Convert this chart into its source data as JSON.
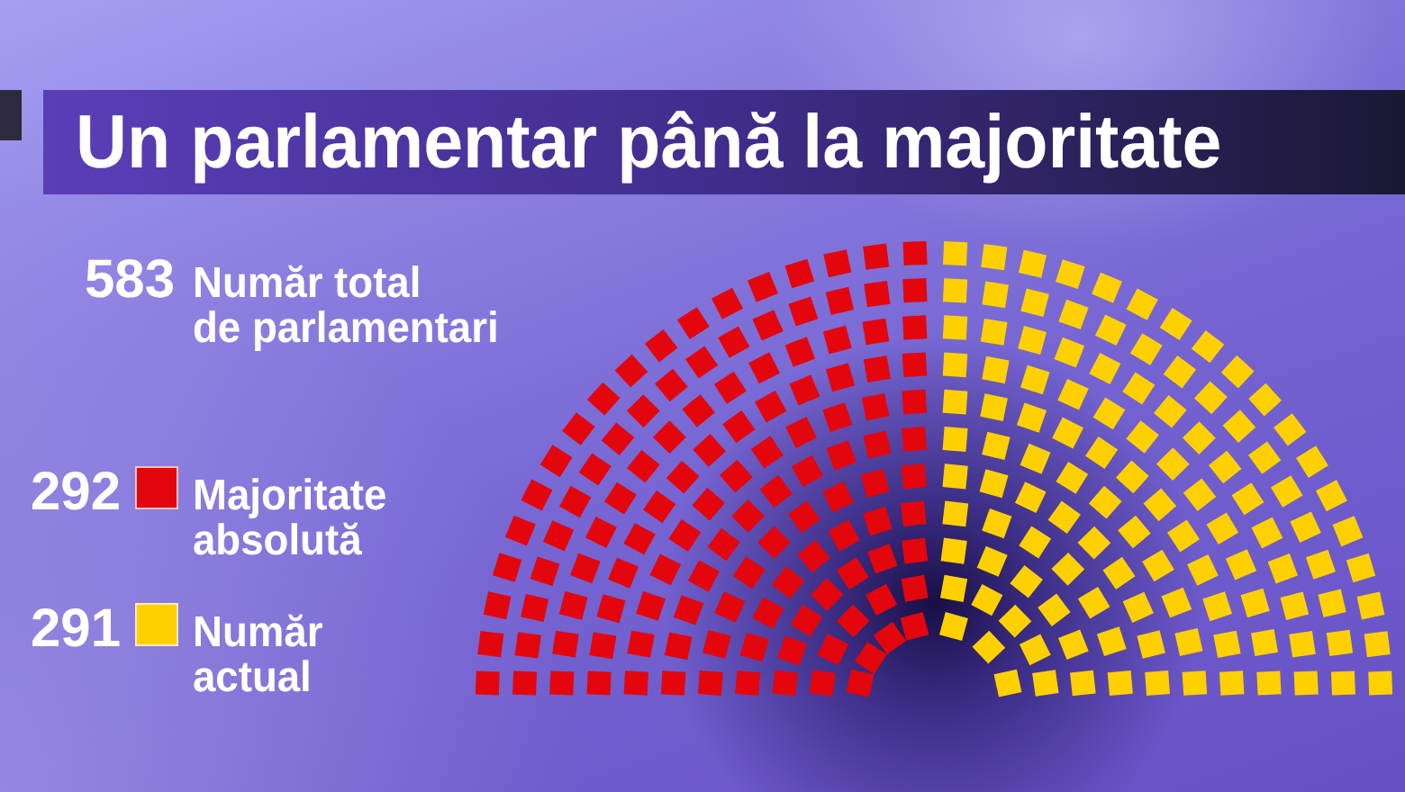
{
  "chart_data": {
    "type": "donut",
    "title": "Un parlamentar până la majoritate",
    "categories": [
      "Majoritate absolută",
      "Număr actual"
    ],
    "values": [
      292,
      291
    ],
    "colors": [
      "#e3060d",
      "#ffd000"
    ],
    "value_labels": [
      "292",
      "291"
    ],
    "legend": "left",
    "annotations": [
      "583 Număr total de parlamentari"
    ]
  }
}
